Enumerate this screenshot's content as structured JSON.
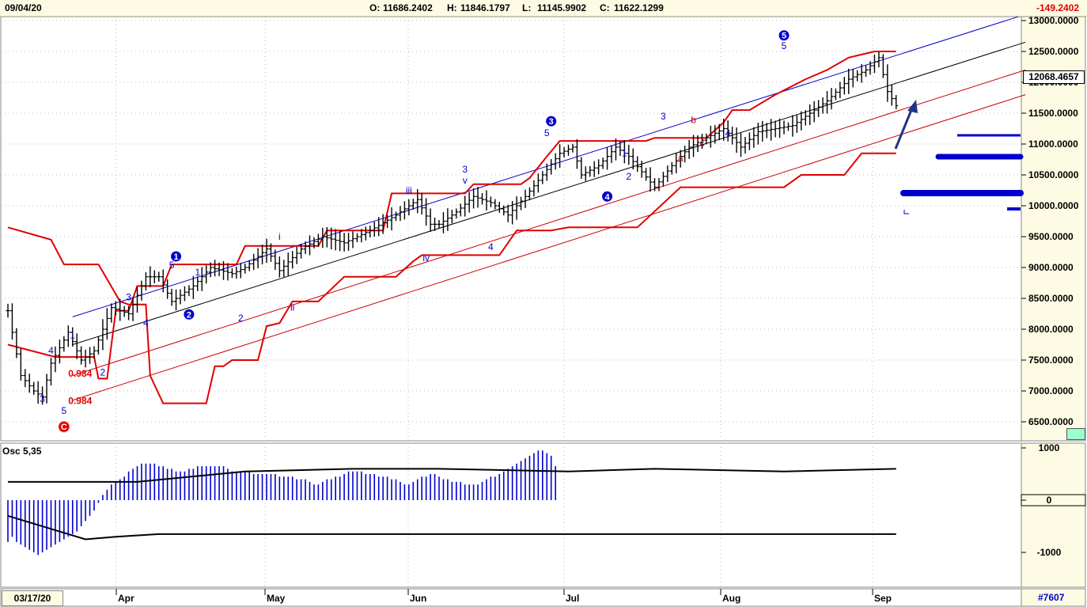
{
  "header": {
    "date": "09/04/20",
    "open_label": "O:",
    "open": "11686.2402",
    "high_label": "H:",
    "high": "11846.1797",
    "low_label": "L:",
    "low": "11145.9902",
    "close_label": "C:",
    "close": "11622.1299",
    "change": "-149.2402"
  },
  "footer": {
    "start_date": "03/17/20",
    "ref": "#7607"
  },
  "colors": {
    "header_bg": "#fdfbe3",
    "axis_bg": "#fdfbe3",
    "price_bar": "#000000",
    "trailing_stop": "#e00000",
    "channel_upper": "#0000cc",
    "channel_mid": "#000000",
    "channel_lower": "#cc0000",
    "wave_label": "#0000cc",
    "corrective_label": "#cc0000",
    "osc_bar": "#0000cc",
    "arrow": "#22338a"
  },
  "chart_data": {
    "type": "bar",
    "title": "",
    "x_months": [
      "Apr",
      "May",
      "Jun",
      "Jul",
      "Aug",
      "Sep"
    ],
    "y_range": [
      6300,
      13100
    ],
    "y_ticks": [
      "13000.0000",
      "12500.0000",
      "12000.0000",
      "11500.0000",
      "11000.0000",
      "10500.0000",
      "10000.0000",
      "9500.0000",
      "9000.0000",
      "8500.0000",
      "8000.0000",
      "7500.0000",
      "7000.0000",
      "6500.0000"
    ],
    "last_price_marker": "12068.4657",
    "ohlc_anchor_closes": [
      [
        0,
        8300
      ],
      [
        3,
        7250
      ],
      [
        6,
        7000
      ],
      [
        8,
        6900
      ],
      [
        10,
        7450
      ],
      [
        14,
        7950
      ],
      [
        17,
        7500
      ],
      [
        20,
        7650
      ],
      [
        24,
        8350
      ],
      [
        28,
        8250
      ],
      [
        32,
        8850
      ],
      [
        35,
        8850
      ],
      [
        38,
        8450
      ],
      [
        43,
        8700
      ],
      [
        47,
        9000
      ],
      [
        52,
        8900
      ],
      [
        55,
        9000
      ],
      [
        60,
        9300
      ],
      [
        63,
        8950
      ],
      [
        68,
        9300
      ],
      [
        73,
        9500
      ],
      [
        78,
        9400
      ],
      [
        84,
        9600
      ],
      [
        90,
        9850
      ],
      [
        95,
        10100
      ],
      [
        98,
        9700
      ],
      [
        100,
        9700
      ],
      [
        104,
        9900
      ],
      [
        108,
        10150
      ],
      [
        112,
        10050
      ],
      [
        116,
        9850
      ],
      [
        120,
        10150
      ],
      [
        124,
        10500
      ],
      [
        128,
        10850
      ],
      [
        131,
        10950
      ],
      [
        133,
        10500
      ],
      [
        137,
        10650
      ],
      [
        141,
        10950
      ],
      [
        144,
        10800
      ],
      [
        147,
        10550
      ],
      [
        150,
        10300
      ],
      [
        154,
        10650
      ],
      [
        158,
        10950
      ],
      [
        162,
        11100
      ],
      [
        166,
        11250
      ],
      [
        170,
        10950
      ],
      [
        174,
        11200
      ],
      [
        178,
        11250
      ],
      [
        182,
        11300
      ],
      [
        186,
        11500
      ],
      [
        190,
        11700
      ],
      [
        195,
        12050
      ],
      [
        199,
        12200
      ],
      [
        202,
        12400
      ],
      [
        204,
        11850
      ],
      [
        206,
        11622
      ]
    ],
    "trailing_stop": [
      [
        0,
        7750
      ],
      [
        11,
        7550
      ],
      [
        20,
        7550
      ],
      [
        21,
        7200
      ],
      [
        23,
        7200
      ],
      [
        25,
        8300
      ],
      [
        28,
        8300
      ],
      [
        30,
        8700
      ],
      [
        36,
        8700
      ],
      [
        38,
        9050
      ],
      [
        53,
        9050
      ],
      [
        55,
        9350
      ],
      [
        72,
        9350
      ],
      [
        74,
        9600
      ],
      [
        87,
        9600
      ],
      [
        89,
        10200
      ],
      [
        106,
        10200
      ],
      [
        108,
        10350
      ],
      [
        119,
        10350
      ],
      [
        121,
        10450
      ],
      [
        125,
        10800
      ],
      [
        128,
        11050
      ],
      [
        148,
        11050
      ],
      [
        150,
        11100
      ],
      [
        162,
        11100
      ],
      [
        166,
        11350
      ],
      [
        168,
        11550
      ],
      [
        172,
        11550
      ],
      [
        178,
        11800
      ],
      [
        185,
        12050
      ],
      [
        190,
        12200
      ],
      [
        195,
        12400
      ],
      [
        198,
        12450
      ],
      [
        201,
        12500
      ],
      [
        206,
        12500
      ]
    ],
    "lower_stop": [
      [
        0,
        9650
      ],
      [
        10,
        9450
      ],
      [
        13,
        9050
      ],
      [
        21,
        9050
      ],
      [
        26,
        8450
      ],
      [
        28,
        8400
      ],
      [
        32,
        8400
      ],
      [
        33,
        7250
      ],
      [
        36,
        6800
      ],
      [
        38,
        6800
      ],
      [
        46,
        6800
      ],
      [
        48,
        7400
      ],
      [
        50,
        7400
      ],
      [
        52,
        7500
      ],
      [
        55,
        7500
      ],
      [
        58,
        7500
      ],
      [
        60,
        8050
      ],
      [
        63,
        8100
      ],
      [
        66,
        8450
      ],
      [
        72,
        8450
      ],
      [
        78,
        8850
      ],
      [
        82,
        8850
      ],
      [
        90,
        8850
      ],
      [
        94,
        9100
      ],
      [
        96,
        9200
      ],
      [
        104,
        9200
      ],
      [
        110,
        9200
      ],
      [
        114,
        9200
      ],
      [
        118,
        9600
      ],
      [
        126,
        9600
      ],
      [
        130,
        9650
      ],
      [
        144,
        9650
      ],
      [
        146,
        9650
      ],
      [
        156,
        10300
      ],
      [
        168,
        10300
      ],
      [
        180,
        10300
      ],
      [
        184,
        10500
      ],
      [
        194,
        10500
      ],
      [
        198,
        10850
      ],
      [
        206,
        10850
      ]
    ],
    "channel_lines": {
      "upper": [
        [
          15,
          8200
        ],
        [
          236,
          13100
        ]
      ],
      "mid": [
        [
          15,
          7750
        ],
        [
          236,
          12650
        ]
      ],
      "lower1": [
        [
          15,
          7250
        ],
        [
          236,
          12200
        ]
      ],
      "lower2": [
        [
          15,
          6850
        ],
        [
          236,
          11800
        ]
      ]
    },
    "oscillator": {
      "name": "Osc 5,35",
      "y_ticks": [
        "1000",
        "0",
        "-1000"
      ],
      "y_range": [
        -1100,
        1050
      ],
      "bars": [
        -800,
        -700,
        -800,
        -850,
        -900,
        -950,
        -1000,
        -1050,
        -1000,
        -950,
        -900,
        -850,
        -800,
        -750,
        -700,
        -650,
        -600,
        -500,
        -400,
        -300,
        -200,
        -50,
        100,
        200,
        300,
        350,
        400,
        450,
        550,
        600,
        650,
        700,
        700,
        700,
        700,
        650,
        650,
        600,
        600,
        550,
        550,
        550,
        600,
        600,
        650,
        650,
        650,
        650,
        650,
        650,
        650,
        600,
        550,
        550,
        550,
        550,
        550,
        500,
        500,
        500,
        500,
        500,
        500,
        450,
        450,
        450,
        450,
        400,
        400,
        400,
        350,
        300,
        300,
        350,
        400,
        400,
        450,
        450,
        500,
        550,
        550,
        550,
        550,
        500,
        500,
        500,
        450,
        450,
        450,
        400,
        400,
        350,
        300,
        300,
        350,
        400,
        450,
        450,
        500,
        500,
        450,
        400,
        400,
        350,
        350,
        350,
        300,
        300,
        300,
        300,
        350,
        400,
        450,
        450,
        500,
        550,
        600,
        650,
        700,
        750,
        800,
        850,
        900,
        950,
        950,
        900,
        850,
        650
      ],
      "signal_upper": [
        [
          0,
          350
        ],
        [
          30,
          350
        ],
        [
          55,
          550
        ],
        [
          80,
          600
        ],
        [
          100,
          600
        ],
        [
          130,
          550
        ],
        [
          150,
          600
        ],
        [
          180,
          550
        ],
        [
          206,
          600
        ]
      ],
      "signal_lower": [
        [
          0,
          -300
        ],
        [
          10,
          -550
        ],
        [
          18,
          -750
        ],
        [
          25,
          -700
        ],
        [
          35,
          -650
        ],
        [
          60,
          -650
        ],
        [
          206,
          -650
        ]
      ]
    },
    "wave_labels": [
      {
        "t": "4",
        "x": 10,
        "v": 7600,
        "c": "b"
      },
      {
        "t": "3",
        "x": 8,
        "v": 6820,
        "c": "b"
      },
      {
        "t": "5",
        "x": 13,
        "v": 6630,
        "c": "b"
      },
      {
        "t": "1",
        "x": 15,
        "v": 7850,
        "c": "b"
      },
      {
        "t": "2",
        "x": 22,
        "v": 7250,
        "c": "b"
      },
      {
        "t": "3",
        "x": 28,
        "v": 8470,
        "c": "b"
      },
      {
        "t": "4",
        "x": 32,
        "v": 8050,
        "c": "b"
      },
      {
        "t": "5",
        "x": 38,
        "v": 8990,
        "c": "b"
      },
      {
        "t": "1",
        "x": 44,
        "v": 8870,
        "c": "b"
      },
      {
        "t": "2",
        "x": 54,
        "v": 8130,
        "c": "b"
      },
      {
        "t": "i",
        "x": 63,
        "v": 9450,
        "c": "b"
      },
      {
        "t": "ii",
        "x": 66,
        "v": 8300,
        "c": "b"
      },
      {
        "t": "iii",
        "x": 93,
        "v": 10200,
        "c": "b"
      },
      {
        "t": "iv",
        "x": 97,
        "v": 9100,
        "c": "b"
      },
      {
        "t": "3",
        "x": 106,
        "v": 10540,
        "c": "b"
      },
      {
        "t": "v",
        "x": 106,
        "v": 10360,
        "c": "b"
      },
      {
        "t": "4",
        "x": 112,
        "v": 9280,
        "c": "b"
      },
      {
        "t": "5",
        "x": 125,
        "v": 11130,
        "c": "b"
      },
      {
        "t": "1",
        "x": 143,
        "v": 10800,
        "c": "b"
      },
      {
        "t": "2",
        "x": 144,
        "v": 10420,
        "c": "b"
      },
      {
        "t": "3",
        "x": 152,
        "v": 11400,
        "c": "b"
      },
      {
        "t": "4",
        "x": 167,
        "v": 11120,
        "c": "b"
      },
      {
        "t": "5",
        "x": 180,
        "v": 12540,
        "c": "b"
      },
      {
        "t": "-5-",
        "x": 181,
        "v": 13100,
        "c": "b"
      },
      {
        "t": "b",
        "x": 159,
        "v": 11340,
        "c": "r"
      },
      {
        "t": "c",
        "x": 161,
        "v": 10960,
        "c": "r"
      },
      {
        "t": "a",
        "x": 156,
        "v": 10720,
        "c": "r"
      }
    ],
    "wave_circles": [
      {
        "t": "1",
        "x": 39,
        "v": 9180,
        "c": "b"
      },
      {
        "t": "2",
        "x": 42,
        "v": 8240,
        "c": "b"
      },
      {
        "t": "3",
        "x": 126,
        "v": 11370,
        "c": "b"
      },
      {
        "t": "4",
        "x": 139,
        "v": 10150,
        "c": "b"
      },
      {
        "t": "5",
        "x": 180,
        "v": 12760,
        "c": "b"
      },
      {
        "t": "C",
        "x": 13,
        "v": 6420,
        "c": "r"
      }
    ],
    "fib_labels": [
      {
        "t": "0.984",
        "x": 14,
        "v": 7230
      },
      {
        "t": "0.984",
        "x": 14,
        "v": 6790
      }
    ]
  }
}
